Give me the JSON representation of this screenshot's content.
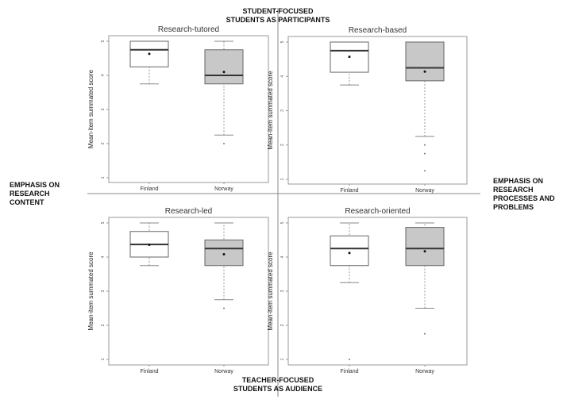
{
  "chart_data": {
    "type": "boxplot",
    "quadrant_labels": {
      "top": [
        "STUDENT-FOCUSED",
        "STUDENTS AS PARTICIPANTS"
      ],
      "bottom": [
        "TEACHER-FOCUSED",
        "STUDENTS AS AUDIENCE"
      ],
      "left": [
        "EMPHASIS ON",
        "RESEARCH",
        "CONTENT"
      ],
      "right": [
        "EMPHASIS ON",
        "RESEARCH",
        "PROCESSES AND",
        "PROBLEMS"
      ]
    },
    "ylabel": "Mean-item summated score",
    "ylim": [
      1,
      5
    ],
    "yticks": [
      "1",
      "2",
      "3",
      "4",
      "5"
    ],
    "categories": [
      "Finland",
      "Norway"
    ],
    "colors": {
      "Finland": "#ffffff",
      "Norway": "#c8c8c8"
    },
    "panels": [
      {
        "title": "Research-tutored",
        "boxes": [
          {
            "group": "Finland",
            "low": 3.75,
            "q1": 4.25,
            "median": 4.75,
            "q3": 5,
            "high": 5,
            "mean": 4.63,
            "outliers": []
          },
          {
            "group": "Norway",
            "low": 2.25,
            "q1": 3.75,
            "median": 4.0,
            "q3": 4.75,
            "high": 5,
            "mean": 4.1,
            "outliers": [
              2.0
            ]
          }
        ]
      },
      {
        "title": "Research-based",
        "boxes": [
          {
            "group": "Finland",
            "low": 3.75,
            "q1": 4.12,
            "median": 4.75,
            "q3": 5,
            "high": 5,
            "mean": 4.57,
            "outliers": []
          },
          {
            "group": "Norway",
            "low": 2.25,
            "q1": 3.87,
            "median": 4.25,
            "q3": 5,
            "high": 5,
            "mean": 4.14,
            "outliers": [
              2.0,
              1.75,
              1.25
            ]
          }
        ]
      },
      {
        "title": "Research-led",
        "boxes": [
          {
            "group": "Finland",
            "low": 3.75,
            "q1": 4.0,
            "median": 4.37,
            "q3": 4.75,
            "high": 5,
            "mean": 4.36,
            "outliers": []
          },
          {
            "group": "Norway",
            "low": 2.75,
            "q1": 3.75,
            "median": 4.25,
            "q3": 4.5,
            "high": 5,
            "mean": 4.08,
            "outliers": [
              2.5
            ]
          }
        ]
      },
      {
        "title": "Research-oriented",
        "boxes": [
          {
            "group": "Finland",
            "low": 3.25,
            "q1": 3.75,
            "median": 4.25,
            "q3": 4.62,
            "high": 5,
            "mean": 4.12,
            "outliers": [
              1.0
            ]
          },
          {
            "group": "Norway",
            "low": 2.5,
            "q1": 3.75,
            "median": 4.25,
            "q3": 4.87,
            "high": 5,
            "mean": 4.17,
            "outliers": [
              1.75
            ]
          }
        ]
      }
    ]
  }
}
